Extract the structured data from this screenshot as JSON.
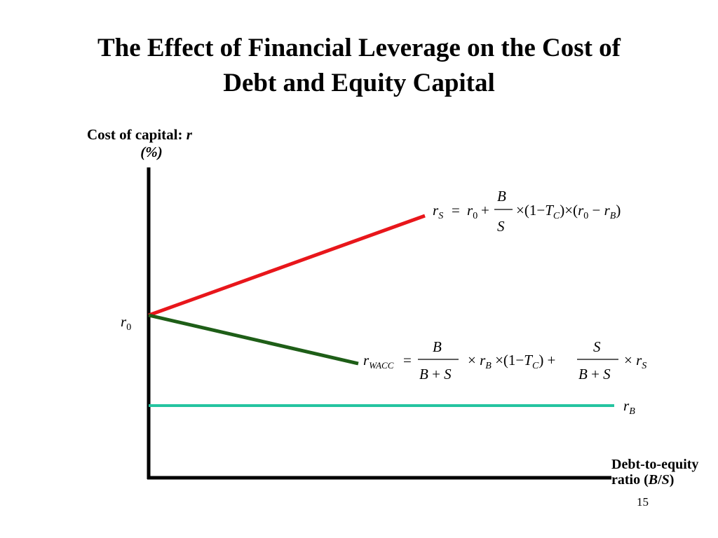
{
  "title_line1": "The Effect of Financial Leverage on the Cost of",
  "title_line2": "Debt and Equity Capital",
  "y_axis_label_line1": "Cost of capital: r",
  "y_axis_label_line2": "(%)",
  "x_axis_label_line1": "Debt-to-equity",
  "x_axis_label_line2": "ratio (B/S)",
  "r0_label": "r0",
  "rB_label": "rB",
  "rS_formula": "rS = r0 + (B/S) × (1 − TC) × (r0 − rB)",
  "rWACC_formula": "rWACC = (B/(B+S)) × rB × (1 − TC) + (S/(B+S)) × rS",
  "page_number": "15",
  "colors": {
    "rS_line": "#e8161b",
    "rWACC_line": "#1e5e17",
    "rB_line": "#25c4a0",
    "axes": "#000000"
  }
}
